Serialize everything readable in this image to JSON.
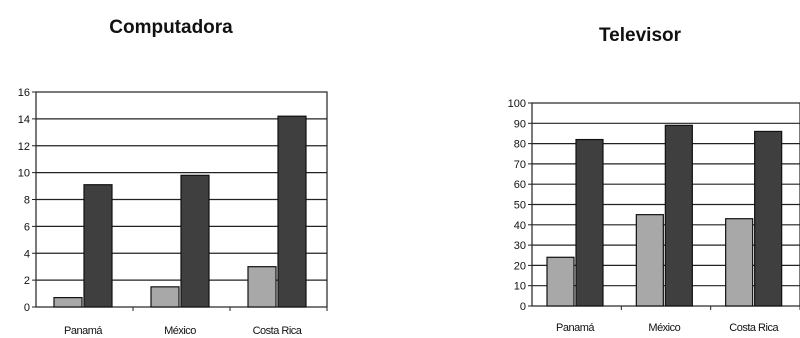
{
  "chart_data": [
    {
      "type": "bar",
      "title": "Computadora",
      "categories": [
        "Panamá",
        "México",
        "Costa Rica"
      ],
      "series": [
        {
          "values": [
            0.7,
            1.5,
            3.0
          ],
          "color": "#a8a8a8"
        },
        {
          "values": [
            9.1,
            9.8,
            14.2
          ],
          "color": "#3f3f3f"
        }
      ],
      "yticks": [
        0,
        2,
        4,
        6,
        8,
        10,
        12,
        14,
        16
      ],
      "ylim": [
        0,
        16
      ],
      "grid": true
    },
    {
      "type": "bar",
      "title": "Televisor",
      "categories": [
        "Panamá",
        "México",
        "Costa Rica"
      ],
      "series": [
        {
          "values": [
            24,
            45,
            43
          ],
          "color": "#a8a8a8"
        },
        {
          "values": [
            82,
            89,
            86
          ],
          "color": "#3f3f3f"
        }
      ],
      "yticks": [
        0,
        10,
        20,
        30,
        40,
        50,
        60,
        70,
        80,
        90,
        100
      ],
      "ylim": [
        0,
        100
      ],
      "grid": true
    }
  ]
}
